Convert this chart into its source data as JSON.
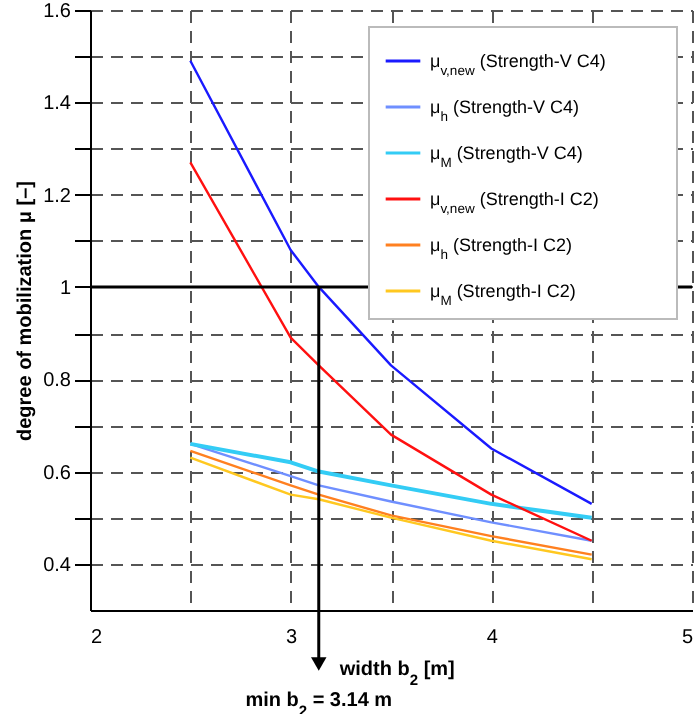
{
  "chart_data": {
    "type": "line",
    "xlabel": "width b$_{2}$ [m]",
    "ylabel": "degree of mobilization μ [–]",
    "xlim": [
      2,
      5
    ],
    "ylim": [
      0.3,
      1.6
    ],
    "xticks": [
      2,
      {
        "value": 2.5,
        "label": null
      },
      3,
      {
        "value": 3.5,
        "label": null
      },
      4,
      {
        "value": 4.5,
        "label": null
      },
      5
    ],
    "yticks": [
      0.4,
      {
        "value": 0.5,
        "label": null
      },
      0.6,
      {
        "value": 0.7,
        "label": null
      },
      0.8,
      {
        "value": 0.9,
        "label": null
      },
      1,
      {
        "value": 1.1,
        "label": null
      },
      1.2,
      {
        "value": 1.3,
        "label": null
      },
      1.4,
      {
        "value": 1.5,
        "label": null
      },
      1.6
    ],
    "grid": true,
    "legend": "top right",
    "ref_lines": [
      {
        "axis": "y",
        "value": 1,
        "color": "#000000"
      },
      {
        "axis": "x",
        "value": 3.14,
        "label": "min b$_{2}$ = 3.14 m",
        "color": "#000000"
      }
    ],
    "series": [
      {
        "name": "μ$_{v,new}$ (Strength-V C4)",
        "color": "#1a1aff",
        "x": [
          2.5,
          3,
          3.14,
          3.5,
          4,
          4.5
        ],
        "values": [
          1.49,
          1.08,
          1.0,
          0.83,
          0.65,
          0.53
        ]
      },
      {
        "name": "μ$_{h}$ (Strength-V C4)",
        "color": "#6f8fff",
        "x": [
          2.5,
          3,
          3.14,
          3.5,
          4,
          4.5
        ],
        "values": [
          0.66,
          0.59,
          0.57,
          0.535,
          0.49,
          0.45
        ]
      },
      {
        "name": "μ$_{M}$ (Strength-V C4)",
        "color": "#33ccf5",
        "x": [
          2.5,
          3,
          3.14,
          3.5,
          4,
          4.5
        ],
        "values": [
          0.66,
          0.62,
          0.6,
          0.57,
          0.53,
          0.5
        ]
      },
      {
        "name": "μ$_{v,new}$ (Strength-I C2)",
        "color": "#ff1010",
        "x": [
          2.5,
          3,
          3.14,
          3.5,
          4,
          4.5
        ],
        "values": [
          1.27,
          0.89,
          0.83,
          0.68,
          0.55,
          0.45
        ]
      },
      {
        "name": "μ$_{h}$ (Strength-I C2)",
        "color": "#ff8020",
        "x": [
          2.5,
          3,
          3.14,
          3.5,
          4,
          4.5
        ],
        "values": [
          0.645,
          0.57,
          0.55,
          0.505,
          0.46,
          0.42
        ]
      },
      {
        "name": "μ$_{M}$ (Strength-I C2)",
        "color": "#ffc820",
        "x": [
          2.5,
          3,
          3.14,
          3.5,
          4,
          4.5
        ],
        "values": [
          0.63,
          0.55,
          0.54,
          0.5,
          0.45,
          0.41
        ]
      }
    ]
  }
}
